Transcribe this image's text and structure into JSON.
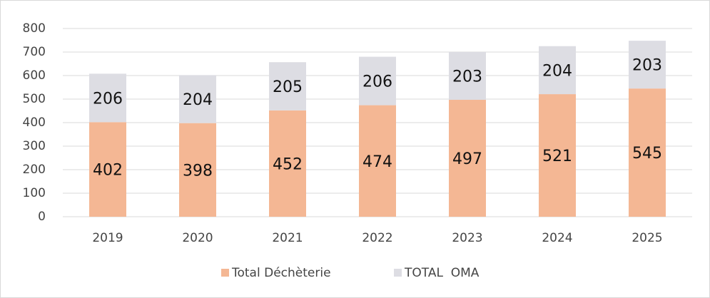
{
  "chart_data": {
    "type": "stacked_bar",
    "categories": [
      "2019",
      "2020",
      "2021",
      "2022",
      "2023",
      "2024",
      "2025"
    ],
    "series": [
      {
        "name": "Total Déchèterie",
        "color": "#f4b794",
        "values": [
          402,
          398,
          452,
          474,
          497,
          521,
          545
        ]
      },
      {
        "name": "TOTAL  OMA",
        "color": "#dddde3",
        "values": [
          206,
          204,
          205,
          206,
          203,
          204,
          203
        ]
      }
    ],
    "ylim": [
      0,
      800
    ],
    "yticks": [
      0,
      100,
      200,
      300,
      400,
      500,
      600,
      700,
      800
    ],
    "grid": true,
    "legend": "bottom"
  }
}
